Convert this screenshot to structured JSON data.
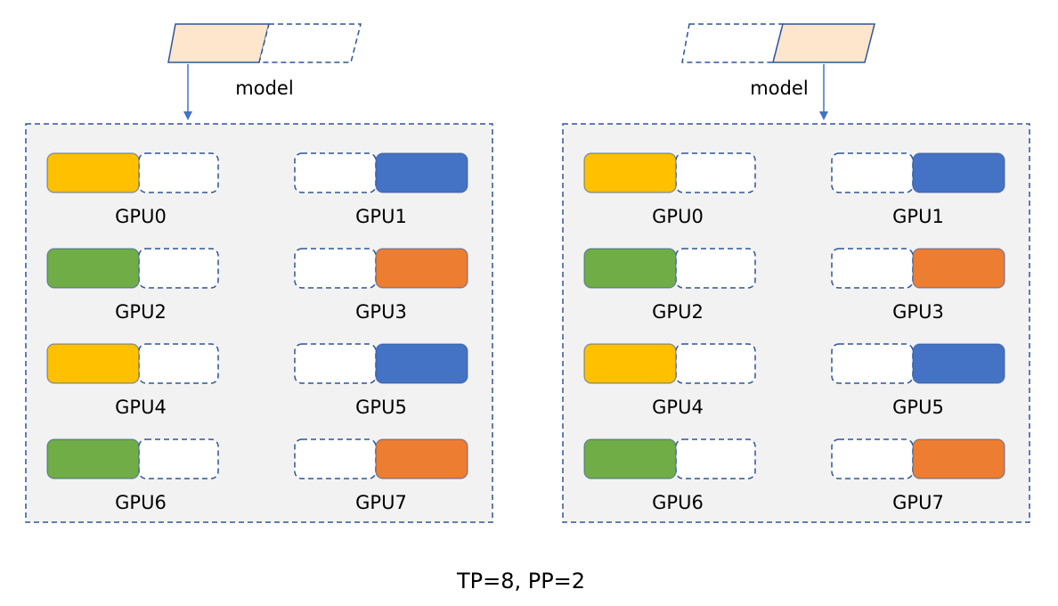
{
  "colors": {
    "model_fill": "#FDE6CC",
    "stroke": "#2F5597",
    "arrow": "#4472C4",
    "panel_fill": "#F2F2F2"
  },
  "panels": [
    {
      "model_label": "model",
      "model_highlighted_half": "left",
      "gpus": [
        {
          "label": "GPU0",
          "color": "#FFC000",
          "filled_half": "left"
        },
        {
          "label": "GPU1",
          "color": "#4472C4",
          "filled_half": "right"
        },
        {
          "label": "GPU2",
          "color": "#70AD47",
          "filled_half": "left"
        },
        {
          "label": "GPU3",
          "color": "#ED7D31",
          "filled_half": "right"
        },
        {
          "label": "GPU4",
          "color": "#FFC000",
          "filled_half": "left"
        },
        {
          "label": "GPU5",
          "color": "#4472C4",
          "filled_half": "right"
        },
        {
          "label": "GPU6",
          "color": "#70AD47",
          "filled_half": "left"
        },
        {
          "label": "GPU7",
          "color": "#ED7D31",
          "filled_half": "right"
        }
      ]
    },
    {
      "model_label": "model",
      "model_highlighted_half": "right",
      "gpus": [
        {
          "label": "GPU0",
          "color": "#FFC000",
          "filled_half": "left"
        },
        {
          "label": "GPU1",
          "color": "#4472C4",
          "filled_half": "right"
        },
        {
          "label": "GPU2",
          "color": "#70AD47",
          "filled_half": "left"
        },
        {
          "label": "GPU3",
          "color": "#ED7D31",
          "filled_half": "right"
        },
        {
          "label": "GPU4",
          "color": "#FFC000",
          "filled_half": "left"
        },
        {
          "label": "GPU5",
          "color": "#4472C4",
          "filled_half": "right"
        },
        {
          "label": "GPU6",
          "color": "#70AD47",
          "filled_half": "left"
        },
        {
          "label": "GPU7",
          "color": "#ED7D31",
          "filled_half": "right"
        }
      ]
    }
  ],
  "caption": "TP=8, PP=2"
}
